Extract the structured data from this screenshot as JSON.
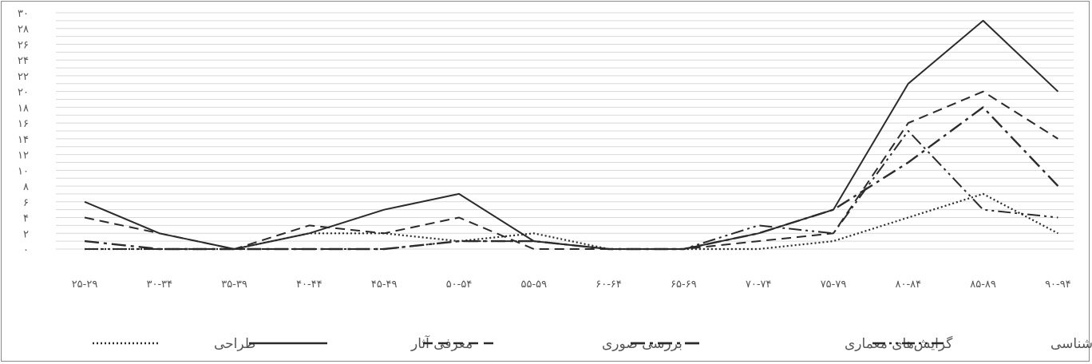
{
  "chart_data": {
    "type": "line",
    "categories": [
      "۲۵-۲۹",
      "۳۰-۳۴",
      "۳۵-۳۹",
      "۴۰-۴۴",
      "۴۵-۴۹",
      "۵۰-۵۴",
      "۵۵-۵۹",
      "۶۰-۶۴",
      "۶۵-۶۹",
      "۷۰-۷۴",
      "۷۵-۷۹",
      "۸۰-۸۴",
      "۸۵-۸۹",
      "۹۰-۹۴"
    ],
    "y_ticks": [
      "۰",
      "۲",
      "۴",
      "۶",
      "۸",
      "۱۰",
      "۱۲",
      "۱۴",
      "۱۶",
      "۱۸",
      "۲۰",
      "۲۲",
      "۲۴",
      "۲۶",
      "۲۸",
      "۳۰"
    ],
    "ylim": [
      0,
      30
    ],
    "grid": true,
    "legend_position": "bottom",
    "series": [
      {
        "name": "طراحی",
        "style": "dotted",
        "values": [
          0,
          0,
          0,
          2,
          2,
          1,
          2,
          0,
          0,
          0,
          1,
          4,
          7,
          2
        ]
      },
      {
        "name": "معرفی آثار",
        "style": "solid",
        "values": [
          6,
          2,
          0,
          2,
          5,
          7,
          1,
          0,
          0,
          2,
          5,
          21,
          29,
          20
        ]
      },
      {
        "name": "بررسی صوری",
        "style": "dashed",
        "values": [
          4,
          2,
          0,
          3,
          2,
          4,
          0,
          0,
          0,
          1,
          2,
          16,
          20,
          14
        ]
      },
      {
        "name": "گرایش‌های معماری",
        "style": "dash-dot",
        "values": [
          1,
          0,
          0,
          0,
          0,
          1,
          1,
          0,
          0,
          2,
          5,
          11,
          18,
          8
        ]
      },
      {
        "name": "سبک‌شناسی",
        "style": "dash-dot-dot",
        "values": [
          0,
          0,
          0,
          0,
          0,
          1,
          1,
          0,
          0,
          3,
          2,
          15,
          5,
          4
        ]
      }
    ],
    "colors": {
      "line": "#2b2b2b",
      "grid": "#d9d9d9",
      "text": "#555555",
      "frame": "#8a8a8a"
    }
  }
}
